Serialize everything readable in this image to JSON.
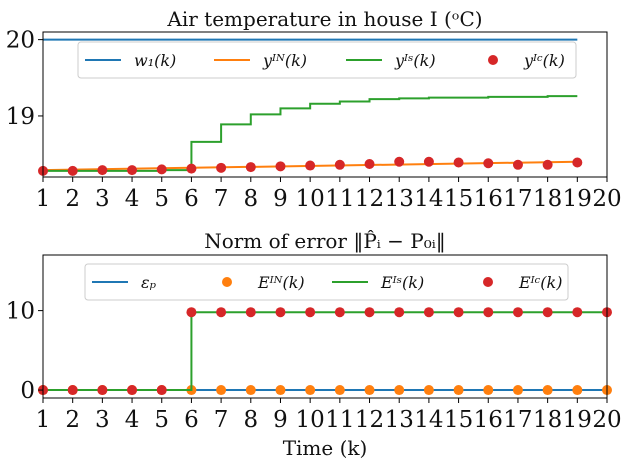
{
  "chart_data": [
    {
      "type": "line",
      "title": "Air temperature in house I (ᵒC)",
      "xlabel": "",
      "ylabel": "",
      "xlim": [
        1,
        20
      ],
      "ylim": [
        18.2,
        20.1
      ],
      "yticks": [
        19,
        20
      ],
      "xticks": [
        1,
        2,
        3,
        4,
        5,
        6,
        7,
        8,
        9,
        10,
        11,
        12,
        13,
        14,
        15,
        16,
        17,
        18,
        19,
        20
      ],
      "legend_placement": "top",
      "series": [
        {
          "name": "w₁(k)",
          "style": "line",
          "color": "#1f77b4",
          "x": [
            1,
            19
          ],
          "y": [
            20,
            20
          ]
        },
        {
          "name": "yᴵᴺ(k)",
          "style": "line",
          "color": "#ff7f0e",
          "x": [
            1,
            2,
            3,
            4,
            5,
            6,
            7,
            8,
            9,
            10,
            11,
            12,
            13,
            14,
            15,
            16,
            17,
            18,
            19
          ],
          "y": [
            18.29,
            18.31,
            18.31,
            18.31,
            18.32,
            18.32,
            18.33,
            18.34,
            18.35,
            18.36,
            18.37,
            18.38,
            18.39,
            18.39,
            18.39,
            18.39,
            18.39,
            18.39,
            18.4
          ]
        },
        {
          "name": "yᴵˢ(k)",
          "style": "step",
          "color": "#2ca02c",
          "x": [
            1,
            2,
            3,
            4,
            5,
            6,
            7,
            8,
            9,
            10,
            11,
            12,
            13,
            14,
            15,
            16,
            17,
            18,
            19
          ],
          "y": [
            18.28,
            18.28,
            18.28,
            18.28,
            18.29,
            18.66,
            18.89,
            19.02,
            19.1,
            19.16,
            19.19,
            19.22,
            19.23,
            19.24,
            19.24,
            19.25,
            19.25,
            19.26,
            19.26
          ]
        },
        {
          "name": "yᴵᶜ(k)",
          "style": "marker",
          "color": "#d62728",
          "x": [
            1,
            2,
            3,
            4,
            5,
            6,
            7,
            8,
            9,
            10,
            11,
            12,
            13,
            14,
            15,
            16,
            17,
            18,
            19
          ],
          "y": [
            18.28,
            18.28,
            18.29,
            18.29,
            18.3,
            18.31,
            18.32,
            18.33,
            18.34,
            18.35,
            18.36,
            18.37,
            18.4,
            18.4,
            18.39,
            18.38,
            18.36,
            18.36,
            18.39
          ]
        }
      ]
    },
    {
      "type": "line",
      "title": "Norm of error ‖P̂ᵢ − P₀ᵢ‖",
      "xlabel": "Time (k)",
      "ylabel": "",
      "xlim": [
        1,
        20
      ],
      "ylim": [
        -1,
        17
      ],
      "yticks": [
        0,
        10
      ],
      "xticks": [
        1,
        2,
        3,
        4,
        5,
        6,
        7,
        8,
        9,
        10,
        11,
        12,
        13,
        14,
        15,
        16,
        17,
        18,
        19,
        20
      ],
      "legend_placement": "top",
      "series": [
        {
          "name": "εₚ",
          "style": "line",
          "color": "#1f77b4",
          "x": [
            1,
            20
          ],
          "y": [
            0,
            0
          ]
        },
        {
          "name": "Eᴵᴺ(k)",
          "style": "marker",
          "color": "#ff7f0e",
          "x": [
            1,
            2,
            3,
            4,
            5,
            6,
            7,
            8,
            9,
            10,
            11,
            12,
            13,
            14,
            15,
            16,
            17,
            18,
            19,
            20
          ],
          "y": [
            0,
            0,
            0,
            0,
            0,
            0,
            0,
            0,
            0,
            0,
            0,
            0,
            0,
            0,
            0,
            0,
            0,
            0,
            0,
            0
          ]
        },
        {
          "name": "Eᴵˢ(k)",
          "style": "step",
          "color": "#2ca02c",
          "x": [
            1,
            2,
            3,
            4,
            5,
            6,
            7,
            8,
            9,
            10,
            11,
            12,
            13,
            14,
            15,
            16,
            17,
            18,
            19,
            20
          ],
          "y": [
            0,
            0,
            0,
            0,
            0,
            9.8,
            9.8,
            9.8,
            9.8,
            9.8,
            9.8,
            9.8,
            9.8,
            9.8,
            9.8,
            9.8,
            9.8,
            9.8,
            9.8,
            9.8
          ]
        },
        {
          "name": "Eᴵᶜ(k)",
          "style": "marker",
          "color": "#d62728",
          "x": [
            1,
            2,
            3,
            4,
            5,
            6,
            7,
            8,
            9,
            10,
            11,
            12,
            13,
            14,
            15,
            16,
            17,
            18,
            19,
            20
          ],
          "y": [
            0,
            0,
            0,
            0,
            0,
            9.8,
            9.8,
            9.8,
            9.8,
            9.8,
            9.8,
            9.8,
            9.8,
            9.8,
            9.8,
            9.8,
            9.8,
            9.8,
            9.8,
            9.8
          ]
        }
      ]
    }
  ]
}
